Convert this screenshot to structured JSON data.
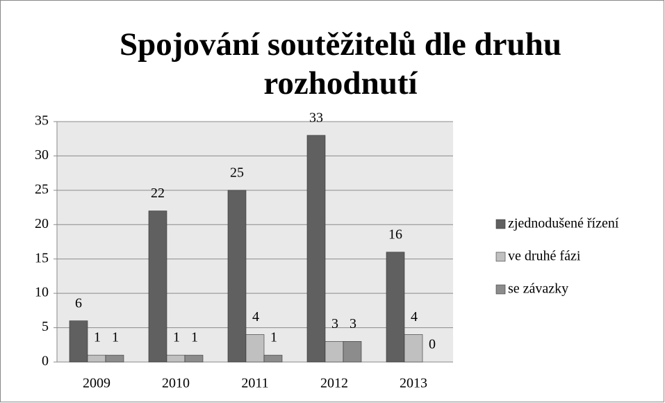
{
  "chart_data": {
    "type": "bar",
    "title": "Spojování soutěžitelů dle druhu rozhodnutí",
    "categories": [
      "2009",
      "2010",
      "2011",
      "2012",
      "2013"
    ],
    "series": [
      {
        "name": "zjednodušené řízení",
        "color": "#606060",
        "values": [
          6,
          22,
          25,
          33,
          16
        ]
      },
      {
        "name": "ve druhé fázi",
        "color": "#c0c0c0",
        "values": [
          1,
          1,
          4,
          3,
          4
        ]
      },
      {
        "name": "se závazky",
        "color": "#8c8c8c",
        "values": [
          1,
          1,
          1,
          3,
          0
        ]
      }
    ],
    "ylim": [
      0,
      35
    ],
    "yticks": [
      0,
      5,
      10,
      15,
      20,
      25,
      30,
      35
    ],
    "grid": true,
    "legend": "right"
  }
}
